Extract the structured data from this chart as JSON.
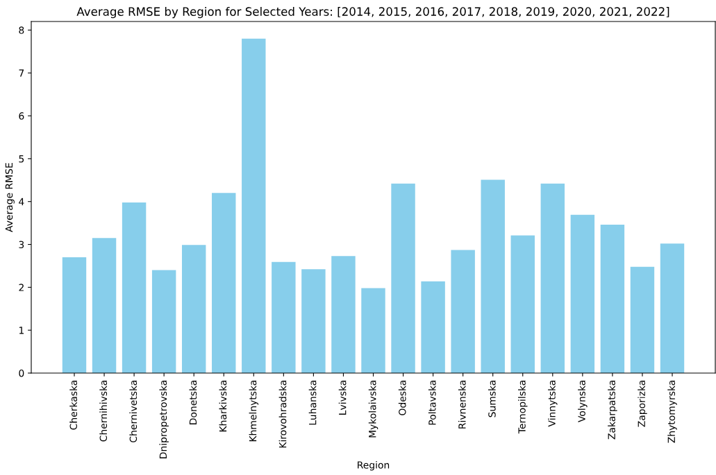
{
  "chart_data": {
    "type": "bar",
    "title": "Average RMSE by Region for Selected Years: [2014, 2015, 2016, 2017, 2018, 2019, 2020, 2021, 2022]",
    "xlabel": "Region",
    "ylabel": "Average RMSE",
    "categories": [
      "Cherkaska",
      "Chernihivska",
      "Chernivetska",
      "Dnipropetrovska",
      "Donetska",
      "Kharkivska",
      "Khmelnytska",
      "Kirovohradska",
      "Luhanska",
      "Lvivska",
      "Mykolaivska",
      "Odeska",
      "Poltavska",
      "Rivnenska",
      "Sumska",
      "Ternopilska",
      "Vinnytska",
      "Volynska",
      "Zakarpatska",
      "Zaporizka",
      "Zhytomyrska"
    ],
    "values": [
      2.7,
      3.15,
      3.98,
      2.4,
      2.99,
      4.2,
      7.8,
      2.59,
      2.42,
      2.73,
      1.98,
      4.42,
      2.14,
      2.87,
      4.51,
      3.21,
      4.42,
      3.69,
      3.46,
      2.48,
      3.02
    ],
    "color": "#87ceeb",
    "ylim": [
      0,
      8.2
    ],
    "yticks": [
      0,
      1,
      2,
      3,
      4,
      5,
      6,
      7,
      8
    ],
    "grid": false,
    "legend": false
  }
}
